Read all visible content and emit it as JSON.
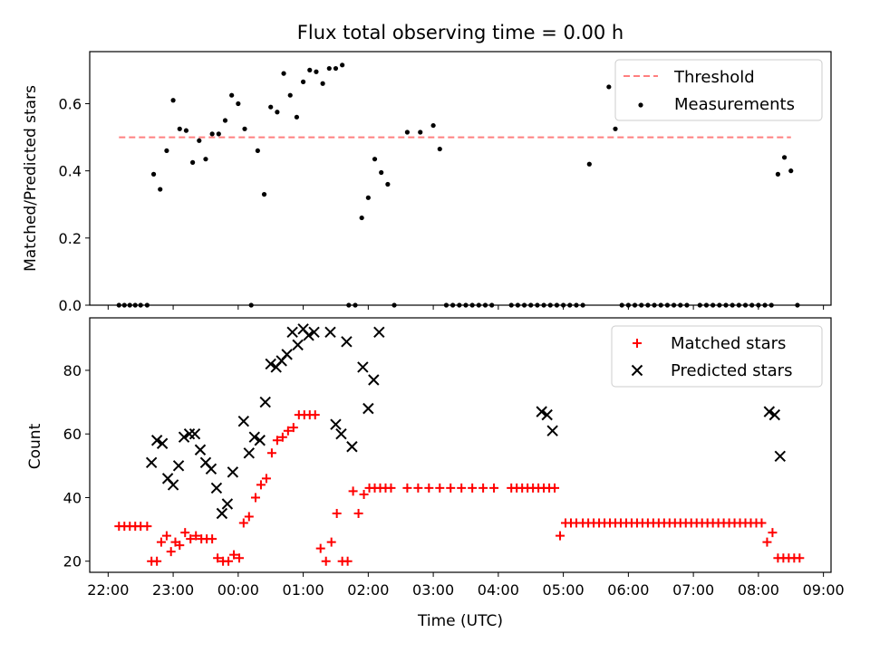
{
  "chart_data": [
    {
      "type": "scatter",
      "title": "Flux total observing time = 0.00 h",
      "xlabel": "",
      "ylabel": "Matched/Predicted stars",
      "xlim": [
        "21:43",
        "09:07"
      ],
      "ylim": [
        0.0,
        0.755
      ],
      "yticks": [
        0.0,
        0.2,
        0.4,
        0.6
      ],
      "ytick_labels": [
        "0.0",
        "0.2",
        "0.4",
        "0.6"
      ],
      "xticks": [
        "22:00",
        "23:00",
        "00:00",
        "01:00",
        "02:00",
        "03:00",
        "04:00",
        "05:00",
        "06:00",
        "07:00",
        "08:00",
        "09:00"
      ],
      "show_xtick_labels": false,
      "grid": false,
      "legend": {
        "placement": "top-right",
        "entries": [
          "Threshold",
          "Measurements"
        ]
      },
      "series": [
        {
          "name": "Threshold",
          "kind": "dashed-line",
          "color": "#ff7f7f",
          "x": [
            "22:10",
            "08:30"
          ],
          "y": [
            0.5,
            0.5
          ]
        },
        {
          "name": "Measurements",
          "kind": "dot",
          "color": "#000000",
          "x": [
            "22:10",
            "22:15",
            "22:20",
            "22:25",
            "22:30",
            "22:36",
            "22:42",
            "22:48",
            "22:54",
            "23:00",
            "23:06",
            "23:12",
            "23:18",
            "23:24",
            "23:30",
            "23:36",
            "23:42",
            "23:48",
            "23:54",
            "00:00",
            "00:06",
            "00:12",
            "00:18",
            "00:24",
            "00:30",
            "00:36",
            "00:42",
            "00:48",
            "00:54",
            "01:00",
            "01:06",
            "01:12",
            "01:18",
            "01:24",
            "01:30",
            "01:36",
            "01:42",
            "01:48",
            "01:54",
            "02:00",
            "02:06",
            "02:12",
            "02:18",
            "02:24",
            "02:36",
            "02:48",
            "03:00",
            "03:06",
            "03:12",
            "03:18",
            "03:24",
            "03:30",
            "03:36",
            "03:42",
            "03:48",
            "03:54",
            "04:12",
            "04:18",
            "04:24",
            "04:30",
            "04:36",
            "04:42",
            "04:48",
            "04:54",
            "05:00",
            "05:06",
            "05:12",
            "05:18",
            "05:24",
            "05:42",
            "05:48",
            "05:54",
            "06:00",
            "06:06",
            "06:12",
            "06:18",
            "06:24",
            "06:30",
            "06:36",
            "06:42",
            "06:48",
            "06:54",
            "07:06",
            "07:12",
            "07:18",
            "07:24",
            "07:30",
            "07:36",
            "07:42",
            "07:48",
            "07:54",
            "08:00",
            "08:06",
            "08:12",
            "08:18",
            "08:24",
            "08:30",
            "08:36"
          ],
          "y": [
            0.0,
            0.0,
            0.0,
            0.0,
            0.0,
            0.0,
            0.39,
            0.345,
            0.46,
            0.61,
            0.525,
            0.52,
            0.425,
            0.49,
            0.435,
            0.51,
            0.51,
            0.55,
            0.625,
            0.6,
            0.525,
            0.0,
            0.46,
            0.33,
            0.59,
            0.575,
            0.69,
            0.625,
            0.56,
            0.665,
            0.7,
            0.695,
            0.66,
            0.705,
            0.705,
            0.715,
            0.0,
            0.0,
            0.26,
            0.32,
            0.435,
            0.395,
            0.36,
            0.0,
            0.515,
            0.515,
            0.535,
            0.465,
            0.0,
            0.0,
            0.0,
            0.0,
            0.0,
            0.0,
            0.0,
            0.0,
            0.0,
            0.0,
            0.0,
            0.0,
            0.0,
            0.0,
            0.0,
            0.0,
            0.0,
            0.0,
            0.0,
            0.0,
            0.42,
            0.65,
            0.525,
            0.0,
            0.0,
            0.0,
            0.0,
            0.0,
            0.0,
            0.0,
            0.0,
            0.0,
            0.0,
            0.0,
            0.0,
            0.0,
            0.0,
            0.0,
            0.0,
            0.0,
            0.0,
            0.0,
            0.0,
            0.0,
            0.0,
            0.0,
            0.39,
            0.44,
            0.4,
            0.0
          ]
        }
      ]
    },
    {
      "type": "scatter",
      "title": "",
      "xlabel": "Time (UTC)",
      "ylabel": "Count",
      "xlim": [
        "21:43",
        "09:07"
      ],
      "ylim": [
        16.5,
        96.5
      ],
      "yticks": [
        20,
        40,
        60,
        80
      ],
      "ytick_labels": [
        "20",
        "40",
        "60",
        "80"
      ],
      "xticks": [
        "22:00",
        "23:00",
        "00:00",
        "01:00",
        "02:00",
        "03:00",
        "04:00",
        "05:00",
        "06:00",
        "07:00",
        "08:00",
        "09:00"
      ],
      "xtick_labels": [
        "22:00",
        "23:00",
        "00:00",
        "01:00",
        "02:00",
        "03:00",
        "04:00",
        "05:00",
        "06:00",
        "07:00",
        "08:00",
        "09:00"
      ],
      "grid": false,
      "legend": {
        "placement": "top-right",
        "entries": [
          "Matched stars",
          "Predicted stars"
        ]
      },
      "series": [
        {
          "name": "Matched stars",
          "kind": "plus",
          "color": "#ff0000",
          "x": [
            "22:10",
            "22:15",
            "22:20",
            "22:25",
            "22:30",
            "22:36",
            "22:40",
            "22:45",
            "22:49",
            "22:54",
            "22:58",
            "23:02",
            "23:06",
            "23:11",
            "23:16",
            "23:21",
            "23:26",
            "23:31",
            "23:36",
            "23:41",
            "23:46",
            "23:51",
            "23:56",
            "00:01",
            "00:05",
            "00:10",
            "00:16",
            "00:21",
            "00:26",
            "00:31",
            "00:36",
            "00:41",
            "00:46",
            "00:51",
            "00:56",
            "01:01",
            "01:06",
            "01:11",
            "01:16",
            "01:21",
            "01:26",
            "01:31",
            "01:36",
            "01:41",
            "01:46",
            "01:51",
            "01:56",
            "02:01",
            "02:06",
            "02:11",
            "02:16",
            "02:21",
            "02:36",
            "02:46",
            "02:56",
            "03:06",
            "03:16",
            "03:26",
            "03:36",
            "03:46",
            "03:56",
            "04:12",
            "04:17",
            "04:22",
            "04:27",
            "04:32",
            "04:37",
            "04:42",
            "04:47",
            "04:52",
            "04:57",
            "05:02",
            "05:07",
            "05:12",
            "05:18",
            "05:23",
            "05:28",
            "05:33",
            "05:38",
            "05:43",
            "05:48",
            "05:53",
            "05:58",
            "06:03",
            "06:08",
            "06:13",
            "06:18",
            "06:23",
            "06:28",
            "06:33",
            "06:38",
            "06:43",
            "06:48",
            "06:53",
            "06:58",
            "07:03",
            "07:08",
            "07:13",
            "07:18",
            "07:23",
            "07:28",
            "07:33",
            "07:38",
            "07:43",
            "07:48",
            "07:53",
            "07:58",
            "08:03",
            "08:08",
            "08:13",
            "08:18",
            "08:23",
            "08:28",
            "08:33",
            "08:38"
          ],
          "y": [
            31,
            31,
            31,
            31,
            31,
            31,
            20,
            20,
            26,
            28,
            23,
            26,
            25,
            29,
            27,
            28,
            27,
            27,
            27,
            21,
            20,
            20,
            22,
            21,
            32,
            34,
            40,
            44,
            46,
            54,
            58,
            59,
            61,
            62,
            66,
            66,
            66,
            66,
            24,
            20,
            26,
            35,
            20,
            20,
            42,
            35,
            41,
            43,
            43,
            43,
            43,
            43,
            43,
            43,
            43,
            43,
            43,
            43,
            43,
            43,
            43,
            43,
            43,
            43,
            43,
            43,
            43,
            43,
            43,
            43,
            28,
            32,
            32,
            32,
            32,
            32,
            32,
            32,
            32,
            32,
            32,
            32,
            32,
            32,
            32,
            32,
            32,
            32,
            32,
            32,
            32,
            32,
            32,
            32,
            32,
            32,
            32,
            32,
            32,
            32,
            32,
            32,
            32,
            32,
            32,
            32,
            32,
            32,
            26,
            29,
            21,
            21,
            21,
            21,
            21
          ]
        },
        {
          "name": "Predicted stars",
          "kind": "x",
          "color": "#000000",
          "x": [
            "22:40",
            "22:45",
            "22:50",
            "22:55",
            "23:00",
            "23:05",
            "23:10",
            "23:15",
            "23:20",
            "23:25",
            "23:30",
            "23:35",
            "23:40",
            "23:45",
            "23:50",
            "23:55",
            "00:05",
            "00:10",
            "00:15",
            "00:20",
            "00:25",
            "00:30",
            "00:35",
            "00:40",
            "00:45",
            "00:50",
            "00:55",
            "01:00",
            "01:05",
            "01:10",
            "01:25",
            "01:30",
            "01:35",
            "01:40",
            "01:45",
            "01:55",
            "02:00",
            "02:05",
            "02:10",
            "04:40",
            "04:45",
            "04:50",
            "08:10",
            "08:15",
            "08:20"
          ],
          "y": [
            51,
            58,
            57,
            46,
            44,
            50,
            59,
            60,
            60,
            55,
            51,
            49,
            43,
            35,
            38,
            48,
            64,
            54,
            59,
            58,
            70,
            82,
            81,
            83,
            85,
            92,
            88,
            93,
            91,
            92,
            92,
            63,
            60,
            89,
            56,
            81,
            68,
            77,
            92,
            67,
            66,
            61,
            67,
            66,
            53
          ]
        }
      ]
    }
  ]
}
